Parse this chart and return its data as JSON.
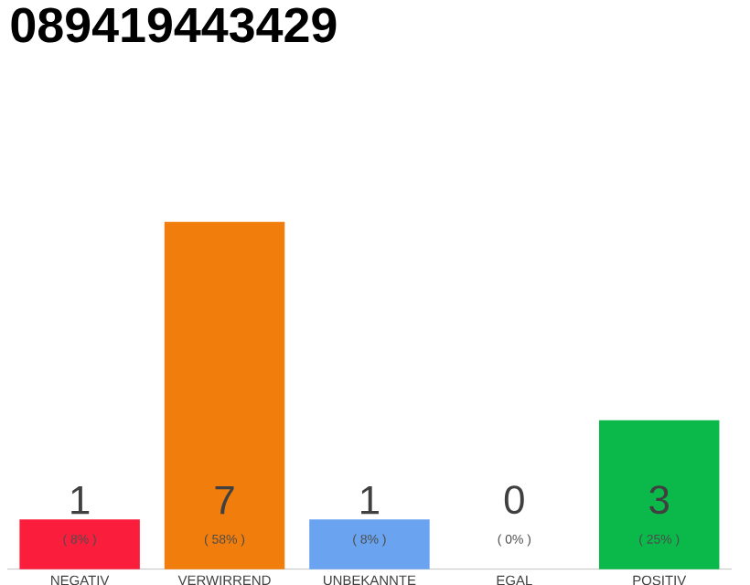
{
  "chart_data": {
    "type": "bar",
    "title": "089419443429",
    "categories": [
      "NEGATIV",
      "VERWIRREND",
      "UNBEKANNTE",
      "EGAL",
      "POSITIV"
    ],
    "values": [
      1,
      7,
      1,
      0,
      3
    ],
    "colors": [
      "#fa1e3c",
      "#f07d0c",
      "#6aa3f0",
      "#bdbdbd",
      "#0bb84a"
    ],
    "ylim": [
      0,
      7
    ],
    "data_labels": true,
    "annotations": [
      "( 8% )",
      "( 58% )",
      "( 8% )",
      "( 0% )",
      "( 25% )"
    ]
  }
}
